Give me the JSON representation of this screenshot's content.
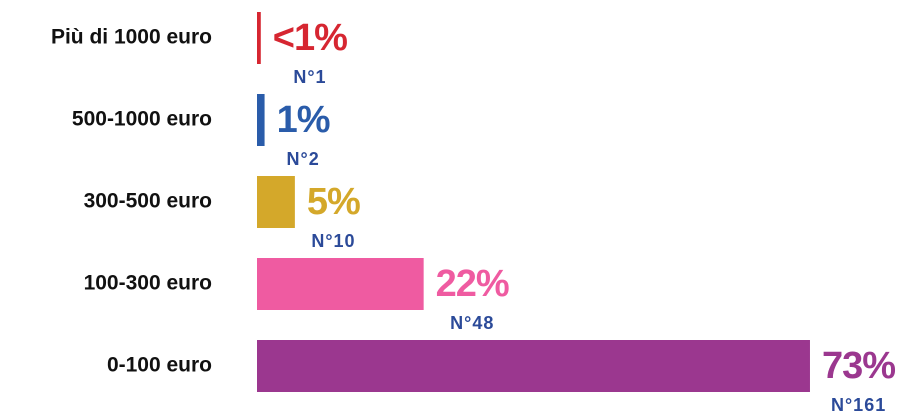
{
  "chart_data": {
    "type": "bar",
    "orientation": "horizontal",
    "categories": [
      "Più di 1000 euro",
      "500-1000 euro",
      "300-500 euro",
      "100-300 euro",
      "0-100 euro"
    ],
    "values": [
      0.5,
      1,
      5,
      22,
      73
    ],
    "value_labels": [
      "<1%",
      "1%",
      "5%",
      "22%",
      "73%"
    ],
    "colors": [
      "#d62631",
      "#2a5caa",
      "#d4a82a",
      "#ef5ba1",
      "#9b378f"
    ],
    "counts": [
      1,
      2,
      10,
      48,
      161
    ],
    "count_labels": [
      "N°1",
      "N°2",
      "N°10",
      "N°48",
      "N°161"
    ],
    "count_color": "#2b4a99"
  }
}
